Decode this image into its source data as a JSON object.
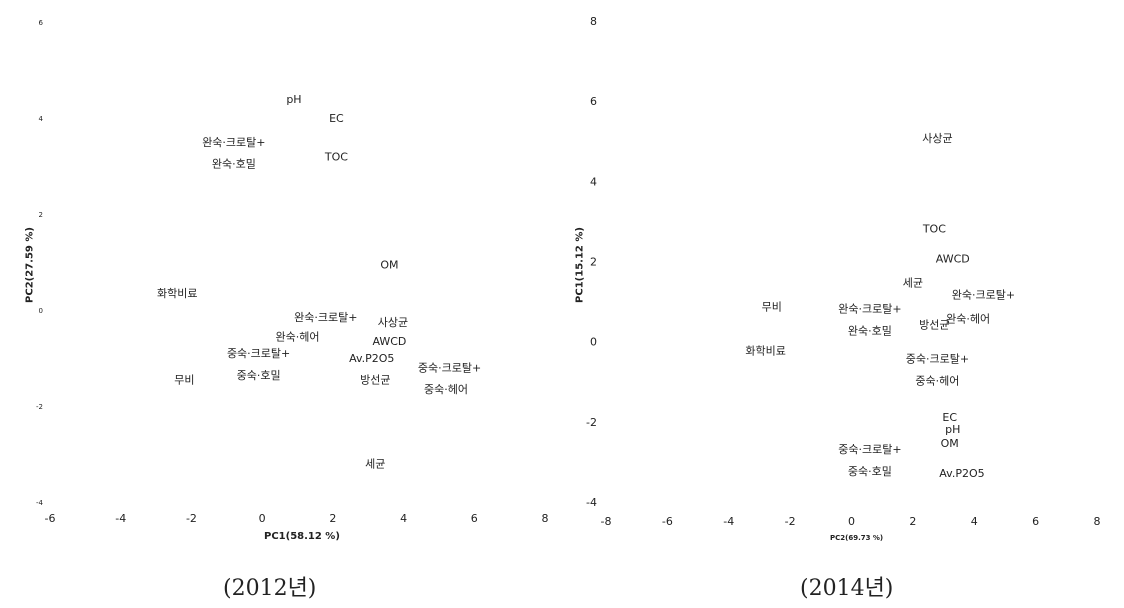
{
  "charts": [
    {
      "caption": "(2012년)",
      "chart_data": {
        "type": "scatter",
        "title": "",
        "xlabel": "PC1(58.12 %)",
        "ylabel": "PC2(27.59 %)",
        "xlim": [
          -6,
          8
        ],
        "ylim": [
          -4,
          6
        ],
        "xticks": [
          "-6",
          "-4",
          "-2",
          "0",
          "2",
          "4",
          "6",
          "8"
        ],
        "yticks": [
          "6",
          "4",
          "2",
          "0",
          "-2",
          "-4"
        ],
        "points": [
          {
            "label": "pH",
            "x": 0.9,
            "y": 4.4
          },
          {
            "label": "EC",
            "x": 2.1,
            "y": 4.0
          },
          {
            "label": "완숙·크로탈+",
            "x": -0.8,
            "y": 3.5
          },
          {
            "label": "TOC",
            "x": 2.1,
            "y": 3.2
          },
          {
            "label": "완숙·호밀",
            "x": -0.8,
            "y": 3.05
          },
          {
            "label": "OM",
            "x": 3.6,
            "y": 0.95
          },
          {
            "label": "화학비료",
            "x": -2.4,
            "y": 0.35
          },
          {
            "label": "완숙·크로탈+",
            "x": 1.8,
            "y": -0.15
          },
          {
            "label": "사상균",
            "x": 3.7,
            "y": -0.25
          },
          {
            "label": "완숙·헤어",
            "x": 1.0,
            "y": -0.55
          },
          {
            "label": "AWCD",
            "x": 3.6,
            "y": -0.65
          },
          {
            "label": "중숙·크로탈+",
            "x": -0.1,
            "y": -0.9
          },
          {
            "label": "Av.P2O5",
            "x": 3.1,
            "y": -1.0
          },
          {
            "label": "중숙·크로탈+",
            "x": 5.3,
            "y": -1.2
          },
          {
            "label": "중숙·호밀",
            "x": -0.1,
            "y": -1.35
          },
          {
            "label": "무비",
            "x": -2.2,
            "y": -1.45
          },
          {
            "label": "방선균",
            "x": 3.2,
            "y": -1.45
          },
          {
            "label": "중숙·헤어",
            "x": 5.2,
            "y": -1.65
          },
          {
            "label": "세균",
            "x": 3.2,
            "y": -3.2
          }
        ]
      }
    },
    {
      "caption": "(2014년)",
      "chart_data": {
        "type": "scatter",
        "title": "",
        "xlabel": "PC2(69.73 %)",
        "ylabel": "PC1(15.12 %)",
        "xlim": [
          -8,
          8
        ],
        "ylim": [
          -4,
          8
        ],
        "xticks": [
          "-8",
          "-6",
          "-4",
          "-2",
          "0",
          "2",
          "4",
          "6",
          "8"
        ],
        "yticks": [
          "8",
          "6",
          "4",
          "2",
          "0",
          "-2",
          "-4"
        ],
        "points": [
          {
            "label": "사상균",
            "x": 2.8,
            "y": 5.1
          },
          {
            "label": "TOC",
            "x": 2.7,
            "y": 2.85
          },
          {
            "label": "AWCD",
            "x": 3.3,
            "y": 2.1
          },
          {
            "label": "세균",
            "x": 2.0,
            "y": 1.5
          },
          {
            "label": "완숙·크로탈+",
            "x": 4.3,
            "y": 1.2
          },
          {
            "label": "무비",
            "x": -2.6,
            "y": 0.9
          },
          {
            "label": "완숙·크로탈+",
            "x": 0.6,
            "y": 0.85
          },
          {
            "label": "방선균",
            "x": 2.7,
            "y": 0.45
          },
          {
            "label": "완숙·헤어",
            "x": 3.8,
            "y": 0.6
          },
          {
            "label": "완숙·호밀",
            "x": 0.6,
            "y": 0.3
          },
          {
            "label": "화학비료",
            "x": -2.8,
            "y": -0.2
          },
          {
            "label": "중숙·크로탈+",
            "x": 2.8,
            "y": -0.4
          },
          {
            "label": "중숙·헤어",
            "x": 2.8,
            "y": -0.95
          },
          {
            "label": "EC",
            "x": 3.2,
            "y": -1.85
          },
          {
            "label": "pH",
            "x": 3.3,
            "y": -2.15
          },
          {
            "label": "OM",
            "x": 3.2,
            "y": -2.5
          },
          {
            "label": "중숙·크로탈+",
            "x": 0.6,
            "y": -2.65
          },
          {
            "label": "중숙·호밀",
            "x": 0.6,
            "y": -3.2
          },
          {
            "label": "Av.P2O5",
            "x": 3.6,
            "y": -3.25
          }
        ]
      }
    }
  ]
}
